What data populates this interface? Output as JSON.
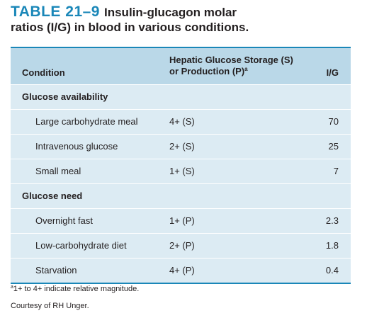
{
  "title": {
    "label": "TABLE 21–9",
    "line1": "Insulin-glucagon molar",
    "line2": "ratios (I/G) in blood in various conditions."
  },
  "header": {
    "condition": "Condition",
    "hepatic_line1": "Hepatic Glucose Storage (S)",
    "hepatic_line2": "or Production (P)",
    "hepatic_footnote_marker": "a",
    "ig": "I/G"
  },
  "sections": [
    {
      "title": "Glucose availability",
      "rows": [
        {
          "condition": "Large carbohydrate meal",
          "hepatic": "4+ (S)",
          "ig": "70"
        },
        {
          "condition": "Intravenous glucose",
          "hepatic": "2+ (S)",
          "ig": "25"
        },
        {
          "condition": "Small meal",
          "hepatic": "1+ (S)",
          "ig": "7"
        }
      ]
    },
    {
      "title": "Glucose need",
      "rows": [
        {
          "condition": "Overnight fast",
          "hepatic": "1+ (P)",
          "ig": "2.3"
        },
        {
          "condition": "Low-carbohydrate diet",
          "hepatic": "2+ (P)",
          "ig": "1.8"
        },
        {
          "condition": "Starvation",
          "hepatic": "4+ (P)",
          "ig": "0.4"
        }
      ]
    }
  ],
  "footnotes": {
    "marker": "a",
    "note": "1+ to 4+ indicate relative magnitude.",
    "credit": "Courtesy of RH Unger."
  }
}
